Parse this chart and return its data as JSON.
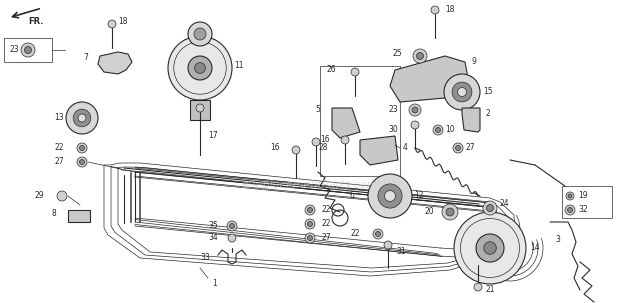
{
  "bg_color": "#ffffff",
  "line_color": "#2a2a2a",
  "watermark": "eReplacementParts.com",
  "watermark_color": "#c8c8c8",
  "fig_w": 6.2,
  "fig_h": 3.03,
  "dpi": 100
}
